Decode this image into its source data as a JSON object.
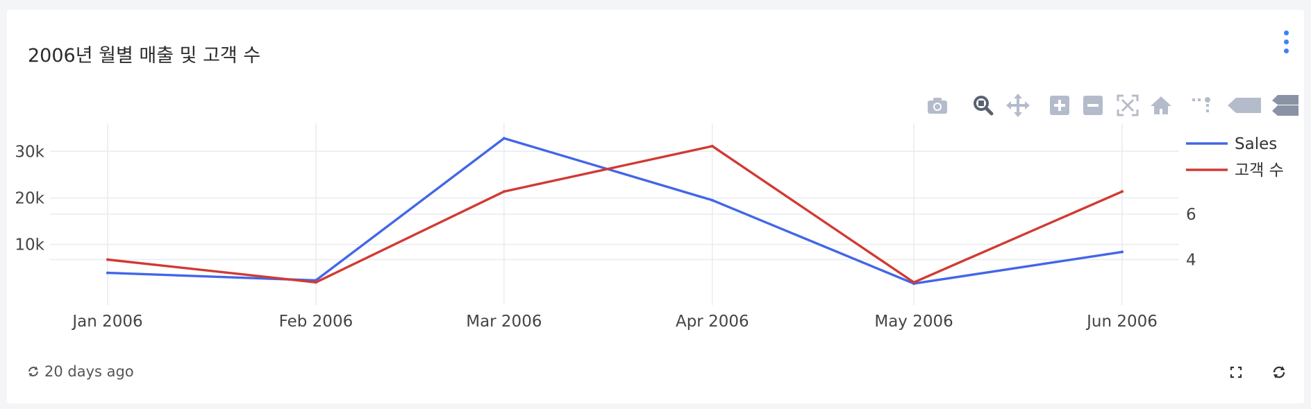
{
  "card": {
    "title": "2006년 월별 매출 및 고객 수",
    "updated": "20 days ago"
  },
  "icons": {
    "menu": "kebab-vertical-icon",
    "modebar": [
      "camera-icon",
      "zoom-icon",
      "pan-icon",
      "zoom-in-icon",
      "zoom-out-icon",
      "autoscale-icon",
      "reset-axes-icon",
      "spike-lines-icon",
      "hover-closest-icon",
      "hover-compare-icon"
    ],
    "footer_left": "refresh-icon",
    "footer_right": [
      "expand-icon",
      "refresh-icon"
    ]
  },
  "colors": {
    "sales": "#4266e8",
    "customers": "#d13a33",
    "accent": "#3b82f6",
    "modebar": "#b4bccb"
  },
  "chart_data": {
    "type": "line",
    "x": [
      "Jan 2006",
      "Feb 2006",
      "Mar 2006",
      "Apr 2006",
      "May 2006",
      "Jun 2006"
    ],
    "x_dates": [
      "2006-01-01",
      "2006-02-01",
      "2006-03-01",
      "2006-04-01",
      "2006-05-01",
      "2006-06-01"
    ],
    "series": [
      {
        "name": "Sales",
        "axis": "y",
        "values": [
          3900,
          2300,
          32800,
          19500,
          1600,
          8400
        ]
      },
      {
        "name": "고객 수",
        "axis": "y2",
        "values": [
          4,
          3,
          7,
          9,
          3,
          7
        ]
      }
    ],
    "yaxis": {
      "ticks": [
        10000,
        20000,
        30000
      ],
      "tick_labels": [
        "10k",
        "20k",
        "30k"
      ],
      "range": [
        -3000,
        36000
      ]
    },
    "y2axis": {
      "ticks": [
        4,
        6
      ],
      "tick_labels": [
        "4",
        "6"
      ],
      "range": [
        2.0,
        10.0
      ]
    },
    "legend": "top-right",
    "grid": true
  }
}
